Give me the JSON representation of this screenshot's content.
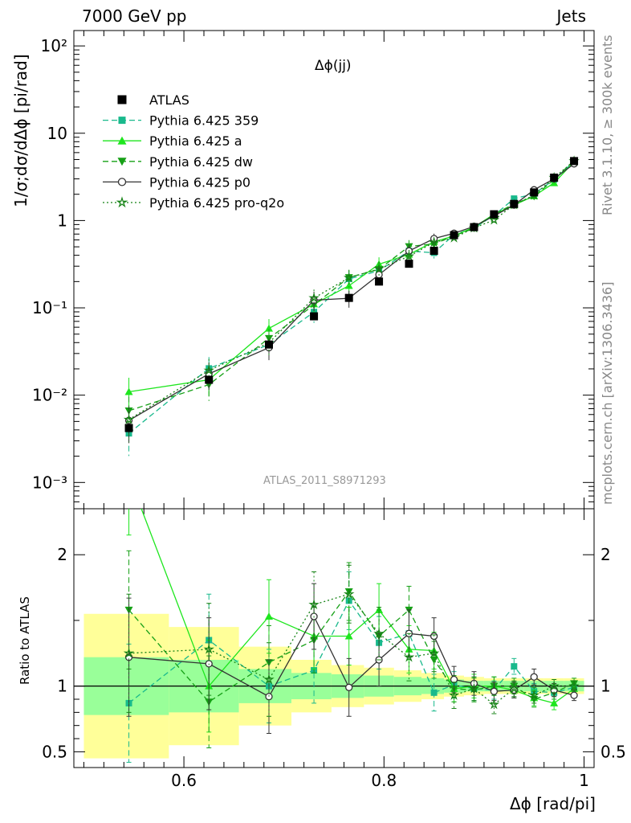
{
  "header": {
    "left": "7000 GeV pp",
    "right": "Jets"
  },
  "side_text": {
    "top": "Rivet 3.1.10, ≥ 300k events",
    "bottom": "mcplots.cern.ch [arXiv:1306.3436]"
  },
  "watermark": "ATLAS_2011_S8971293",
  "chart_data": {
    "type": "line",
    "title": "Δϕ(jj)",
    "xlabel": "Δϕ [rad/pi]",
    "ylabel": "1/σ;dσ/dΔϕ [pi/rad]",
    "ratio_ylabel": "Ratio to ATLAS",
    "xlim": [
      0.49,
      1.01
    ],
    "ylim": [
      0.0005,
      150
    ],
    "yscale": "log",
    "ratio_ylim": [
      0.38,
      2.35
    ],
    "xticks": [
      "0.6",
      "0.8",
      "1"
    ],
    "ratio_yticks": [
      "0.5",
      "1",
      "2"
    ],
    "legend_position": "top-left",
    "x": [
      0.545,
      0.625,
      0.685,
      0.73,
      0.765,
      0.795,
      0.825,
      0.85,
      0.87,
      0.89,
      0.91,
      0.93,
      0.95,
      0.97,
      0.99
    ],
    "data": {
      "name": "ATLAS",
      "values": [
        0.0042,
        0.015,
        0.038,
        0.08,
        0.13,
        0.2,
        0.32,
        0.45,
        0.68,
        0.84,
        1.18,
        1.55,
        2.1,
        3.1,
        4.8
      ],
      "band_inner": [
        0.22,
        0.2,
        0.13,
        0.1,
        0.09,
        0.08,
        0.07,
        0.06,
        0.05,
        0.04,
        0.04,
        0.04,
        0.04,
        0.04,
        0.04
      ],
      "band_outer": [
        0.55,
        0.45,
        0.3,
        0.2,
        0.16,
        0.14,
        0.12,
        0.1,
        0.08,
        0.07,
        0.06,
        0.06,
        0.06,
        0.06,
        0.06
      ]
    },
    "series": [
      {
        "name": "Pythia 6.425 359",
        "color": "#19b98c",
        "dash": "7,4",
        "marker": "square",
        "ratio": [
          0.87,
          1.35,
          1.0,
          1.12,
          1.65,
          1.33,
          1.4,
          0.95,
          1.01,
          0.98,
          0.97,
          1.15,
          0.96,
          0.95,
          0.99
        ],
        "ratio_err": [
          0.45,
          0.35,
          0.28,
          0.25,
          0.22,
          0.2,
          0.18,
          0.14,
          0.1,
          0.09,
          0.07,
          0.06,
          0.06,
          0.05,
          0.04
        ]
      },
      {
        "name": "Pythia 6.425 a",
        "color": "#1ee61e",
        "dash": "",
        "marker": "triangle-up",
        "ratio": [
          2.6,
          1.0,
          1.53,
          1.38,
          1.38,
          1.58,
          1.28,
          1.27,
          0.98,
          1.0,
          1.0,
          0.97,
          0.91,
          0.87,
          0.98
        ],
        "ratio_err": [
          0.45,
          0.35,
          0.28,
          0.25,
          0.22,
          0.2,
          0.18,
          0.14,
          0.1,
          0.09,
          0.07,
          0.06,
          0.06,
          0.05,
          0.04
        ]
      },
      {
        "name": "Pythia 6.425 dw",
        "color": "#16a016",
        "dash": "7,4",
        "marker": "triangle-down",
        "ratio": [
          1.58,
          0.88,
          1.18,
          1.35,
          1.72,
          1.38,
          1.58,
          1.2,
          0.98,
          0.97,
          1.0,
          1.0,
          0.9,
          0.95,
          1.02
        ],
        "ratio_err": [
          0.45,
          0.35,
          0.28,
          0.25,
          0.22,
          0.2,
          0.18,
          0.14,
          0.1,
          0.09,
          0.07,
          0.06,
          0.06,
          0.05,
          0.04
        ]
      },
      {
        "name": "Pythia 6.425 p0",
        "color": "#333333",
        "dash": "",
        "marker": "circle",
        "ratio": [
          1.22,
          1.17,
          0.92,
          1.53,
          0.99,
          1.2,
          1.4,
          1.38,
          1.05,
          1.02,
          0.96,
          0.97,
          1.07,
          0.97,
          0.93
        ],
        "ratio_err": [
          0.45,
          0.35,
          0.28,
          0.25,
          0.22,
          0.2,
          0.18,
          0.14,
          0.1,
          0.09,
          0.07,
          0.06,
          0.06,
          0.05,
          0.04
        ]
      },
      {
        "name": "Pythia 6.425 pro-q2o",
        "color": "#158215",
        "dash": "2,3",
        "marker": "star",
        "ratio": [
          1.25,
          1.28,
          1.05,
          1.62,
          1.7,
          1.4,
          1.22,
          1.25,
          0.93,
          0.98,
          0.86,
          0.98,
          0.93,
          1.0,
          1.0
        ],
        "ratio_err": [
          0.45,
          0.35,
          0.28,
          0.25,
          0.22,
          0.2,
          0.18,
          0.14,
          0.1,
          0.09,
          0.07,
          0.06,
          0.06,
          0.05,
          0.04
        ]
      }
    ]
  }
}
